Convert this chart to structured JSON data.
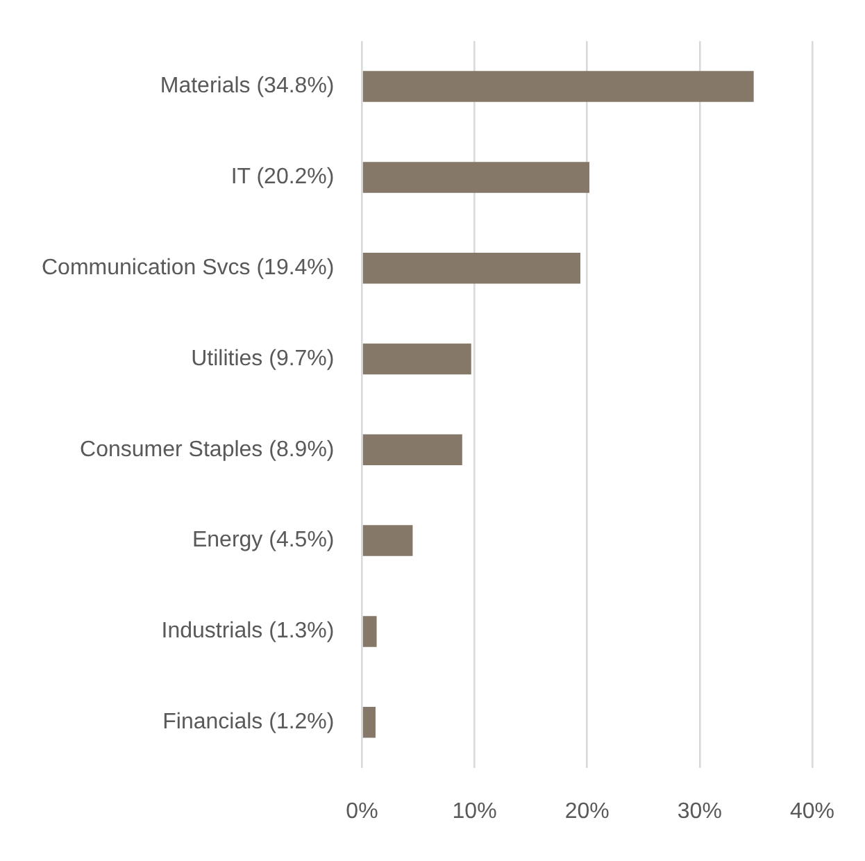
{
  "chart_data": {
    "type": "bar",
    "orientation": "horizontal",
    "categories": [
      "Materials (34.8%)",
      "IT (20.2%)",
      "Communication Svcs (19.4%)",
      "Utilities (9.7%)",
      "Consumer Staples (8.9%)",
      "Energy (4.5%)",
      "Industrials (1.3%)",
      "Financials (1.2%)"
    ],
    "values": [
      34.8,
      20.2,
      19.4,
      9.7,
      8.9,
      4.5,
      1.3,
      1.2
    ],
    "color": "#857869",
    "xlim": [
      0,
      40
    ],
    "xticks": [
      {
        "value": 0,
        "label": "0%"
      },
      {
        "value": 10,
        "label": "10%"
      },
      {
        "value": 20,
        "label": "20%"
      },
      {
        "value": 30,
        "label": "30%"
      },
      {
        "value": 40,
        "label": "40%"
      }
    ],
    "grid": "x",
    "legend": false
  }
}
